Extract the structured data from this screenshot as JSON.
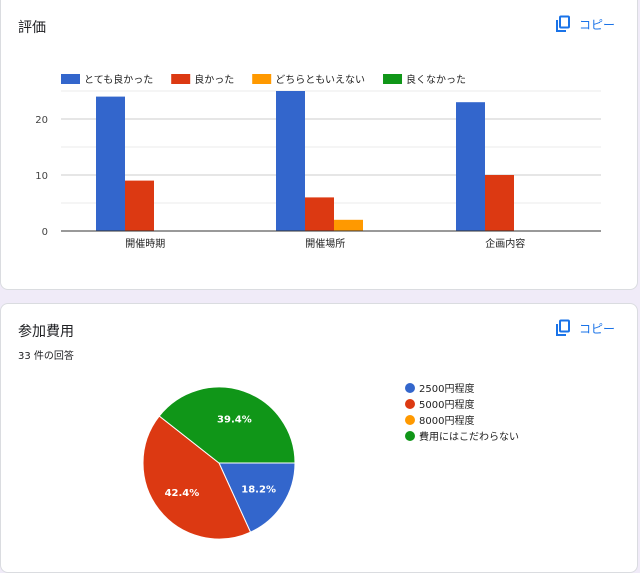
{
  "colors": {
    "blue": "#3366cc",
    "red": "#dc3912",
    "orange": "#ff9900",
    "green": "#109618",
    "link": "#1a73e8"
  },
  "card1": {
    "title": "評価",
    "copy_label": "コピー",
    "copy_icon": "copy-icon"
  },
  "card2": {
    "title": "参加費用",
    "subtitle": "33 件の回答",
    "copy_label": "コピー",
    "copy_icon": "copy-icon"
  },
  "chart_data": [
    {
      "type": "bar",
      "title": "評価",
      "categories": [
        "開催時期",
        "開催場所",
        "企画内容"
      ],
      "series": [
        {
          "name": "とても良かった",
          "values": [
            24,
            25,
            23
          ]
        },
        {
          "name": "良かった",
          "values": [
            9,
            6,
            10
          ]
        },
        {
          "name": "どちらともいえない",
          "values": [
            0,
            2,
            0
          ]
        },
        {
          "name": "良くなかった",
          "values": [
            0,
            0,
            0
          ]
        }
      ],
      "y_ticks": [
        0,
        10,
        20
      ],
      "ylim": [
        0,
        25
      ],
      "legend_position": "top-left",
      "grid": true
    },
    {
      "type": "pie",
      "title": "参加費用",
      "slices": [
        {
          "name": "2500円程度",
          "value": 18.2,
          "label": "18.2%"
        },
        {
          "name": "5000円程度",
          "value": 42.4,
          "label": "42.4%"
        },
        {
          "name": "8000円程度",
          "value": 0,
          "label": ""
        },
        {
          "name": "費用にはこだわらない",
          "value": 39.4,
          "label": "39.4%"
        }
      ],
      "legend_position": "right"
    }
  ]
}
